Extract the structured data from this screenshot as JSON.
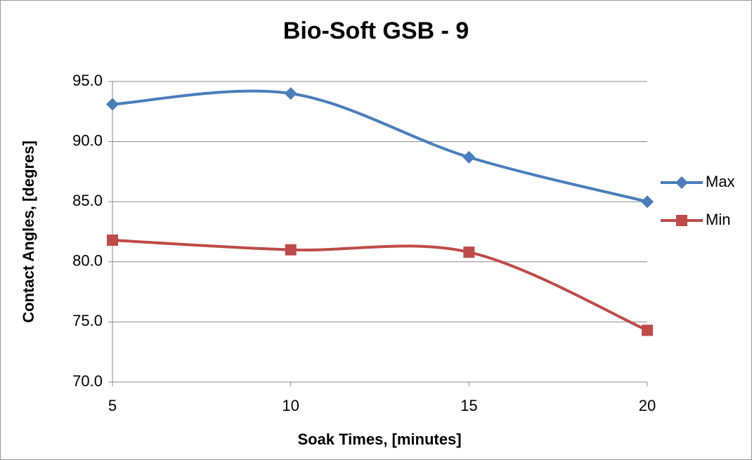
{
  "chart_data": {
    "type": "line",
    "title": "Bio-Soft GSB - 9",
    "x_label": "Soak Times, [minutes]",
    "y_label": "Contact Angles, [degres]",
    "x": [
      5,
      10,
      15,
      20
    ],
    "series": [
      {
        "name": "Max",
        "color": "#4a7ebb",
        "marker": "diamond",
        "values": [
          93.1,
          94.0,
          88.7,
          85.0
        ]
      },
      {
        "name": "Min",
        "color": "#be4b48",
        "marker": "square",
        "values": [
          81.8,
          81.0,
          80.8,
          74.3
        ]
      }
    ],
    "xlim": [
      5,
      20
    ],
    "xticks": [
      5,
      10,
      15,
      20
    ],
    "ylim": [
      70,
      95
    ],
    "yticks": [
      {
        "value": 70,
        "label": "70.0"
      },
      {
        "value": 75,
        "label": "75.0"
      },
      {
        "value": 80,
        "label": "80.0"
      },
      {
        "value": 85,
        "label": "85.0"
      },
      {
        "value": 90,
        "label": "90.0"
      },
      {
        "value": 95,
        "label": "95.0"
      }
    ],
    "grid": true,
    "legend": "right",
    "smooth": true
  }
}
